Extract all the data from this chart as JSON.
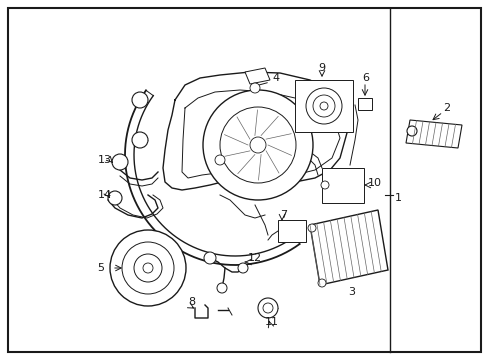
{
  "background_color": "#ffffff",
  "border_color": "#000000",
  "figsize": [
    4.89,
    3.6
  ],
  "dpi": 100,
  "image_b64": ""
}
